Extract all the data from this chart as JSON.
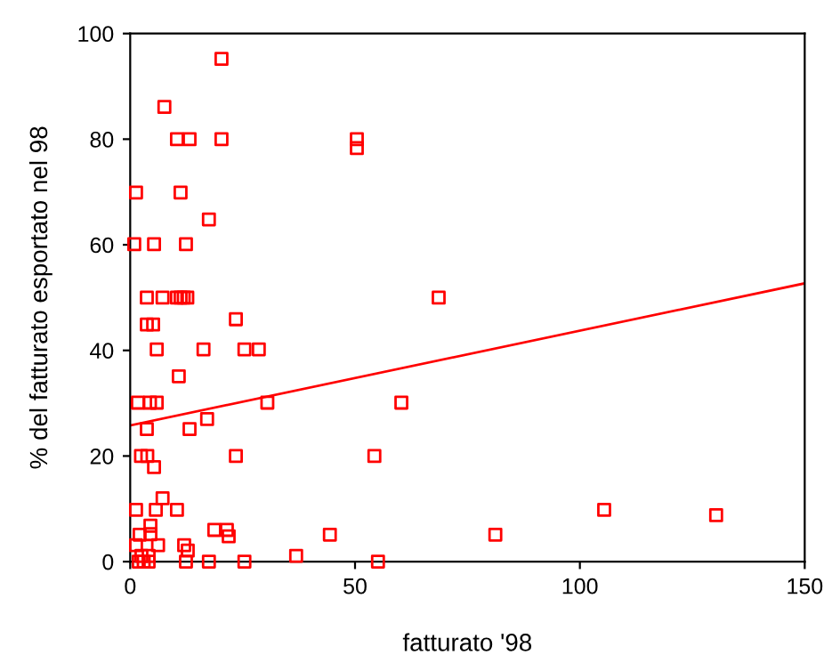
{
  "chart_data": {
    "type": "scatter",
    "xlabel": "fatturato '98",
    "ylabel": "% del fatturato esportato nel 98",
    "xlim": [
      0,
      150
    ],
    "ylim": [
      0,
      100
    ],
    "xticks": [
      0,
      50,
      100,
      150
    ],
    "yticks": [
      0,
      20,
      40,
      60,
      80,
      100
    ],
    "grid": false,
    "series": [
      {
        "marker": "square",
        "color": "#ff0000",
        "x": [
          20.3,
          7.6,
          10.4,
          13.2,
          20.3,
          1.3,
          11.2,
          17.5,
          0.9,
          5.3,
          12.4,
          3.7,
          7.2,
          10.4,
          11.2,
          11.9,
          12.7,
          3.7,
          5.1,
          23.5,
          5.9,
          16.3,
          25.4,
          28.6,
          10.8,
          1.7,
          4.4,
          5.9,
          30.5,
          3.7,
          13.2,
          17.1,
          2.4,
          3.8,
          23.5,
          5.3,
          7.2,
          1.3,
          5.7,
          10.4,
          4.5,
          4.5,
          2.1,
          18.7,
          21.5,
          21.9,
          1.3,
          6.2,
          12.0,
          12.8,
          2.5,
          4.1,
          1.9,
          3.0,
          4.1,
          12.4,
          17.5,
          25.4,
          36.9,
          50.4,
          50.4,
          68.6,
          60.3,
          54.3,
          105.4,
          130.3,
          44.4,
          81.2,
          55.1
        ],
        "values": [
          95.2,
          86.1,
          80.0,
          80.0,
          80.0,
          69.9,
          69.9,
          64.8,
          60.1,
          60.1,
          60.1,
          50,
          50,
          50,
          50,
          50,
          50,
          44.9,
          44.9,
          45.9,
          40.2,
          40.2,
          40.2,
          40.2,
          35.1,
          30.1,
          30.1,
          30.1,
          30.1,
          25.1,
          25.1,
          27.0,
          20.0,
          20.0,
          20.0,
          17.9,
          12.0,
          9.8,
          9.8,
          9.8,
          6.8,
          5.2,
          5.1,
          6.0,
          6.0,
          4.8,
          3.1,
          3.1,
          3.1,
          2.1,
          1.1,
          1.1,
          0,
          0,
          0,
          0,
          0,
          0,
          1.1,
          80.0,
          78.3,
          50.0,
          30.1,
          20.0,
          9.8,
          8.8,
          5.1,
          5.1,
          0
        ]
      },
      {
        "type": "line",
        "color": "#ff0000",
        "x": [
          0,
          150
        ],
        "values": [
          25.8,
          52.7
        ]
      }
    ]
  }
}
